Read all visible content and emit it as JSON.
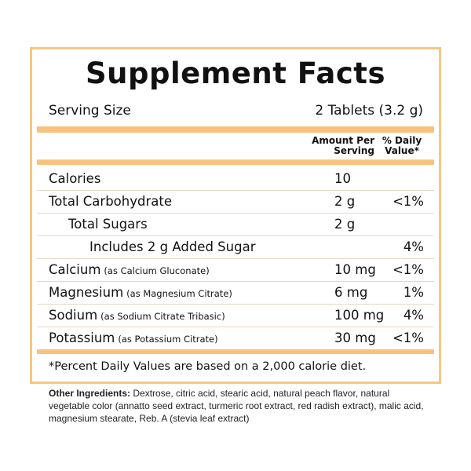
{
  "title": "Supplement Facts",
  "serving": {
    "label": "Serving Size",
    "value": "2 Tablets (3.2 g)"
  },
  "header": {
    "amount": "Amount Per Serving",
    "daily": "% Daily Value*"
  },
  "rows": [
    {
      "name": "Calories",
      "amount": "10"
    },
    {
      "name": "Total Carbohydrate",
      "amount": "2 g",
      "daily": "<1%"
    },
    {
      "name": "Total Sugars",
      "amount": "2 g"
    },
    {
      "name": "Includes 2 g Added Sugar",
      "daily": "4%"
    },
    {
      "name": "Calcium",
      "note": "(as Calcium Gluconate)",
      "amount": "10 mg",
      "daily": "<1%"
    },
    {
      "name": "Magnesium",
      "note": "(as Magnesium Citrate)",
      "amount": "6 mg",
      "daily": "1%"
    },
    {
      "name": "Sodium",
      "note": "(as Sodium Citrate Tribasic)",
      "amount": "100 mg",
      "daily": "4%"
    },
    {
      "name": "Potassium",
      "note": "(as Potassium Citrate)",
      "amount": "30 mg",
      "daily": "<1%"
    }
  ],
  "footnote": "*Percent Daily Values are based on a 2,000 calorie diet.",
  "other_ingredients": {
    "label": "Other Ingredients:",
    "text": "Dextrose, citric acid, stearic acid, natural peach flavor, natural vegetable color (annatto seed extract, turmeric root extract, red radish extract), malic acid, magnesium stearate, Reb. A (stevia leaf extract)"
  }
}
